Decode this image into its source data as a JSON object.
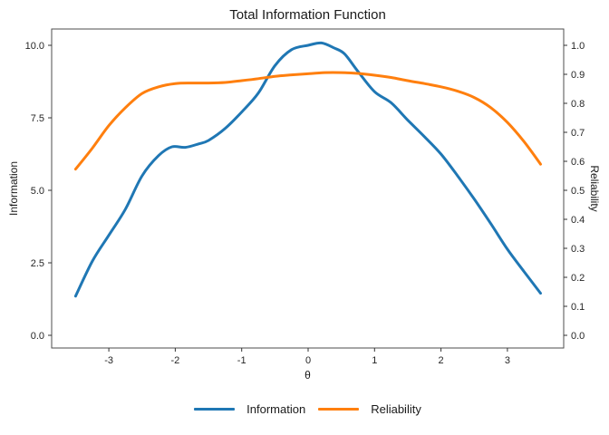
{
  "chart_data": {
    "type": "line",
    "title": "Total Information Function",
    "xlabel": "θ",
    "ylabel_left": "Information",
    "ylabel_right": "Reliability",
    "xlim": [
      -3.5,
      3.5
    ],
    "ylim_left": [
      0,
      10
    ],
    "ylim_right": [
      0,
      1.0
    ],
    "grid": false,
    "legend_position": "bottom-center",
    "x_ticks": [
      {
        "v": -3,
        "label": "-3"
      },
      {
        "v": -2,
        "label": "-2"
      },
      {
        "v": -1,
        "label": "-1"
      },
      {
        "v": 0,
        "label": "0"
      },
      {
        "v": 1,
        "label": "1"
      },
      {
        "v": 2,
        "label": "2"
      },
      {
        "v": 3,
        "label": "3"
      }
    ],
    "y_ticks_left": [
      {
        "v": 0,
        "label": "0.0"
      },
      {
        "v": 2.5,
        "label": "2.5"
      },
      {
        "v": 5,
        "label": "5.0"
      },
      {
        "v": 7.5,
        "label": "7.5"
      },
      {
        "v": 10,
        "label": "10.0"
      }
    ],
    "y_ticks_right": [
      {
        "v": 0.0,
        "label": "0.0"
      },
      {
        "v": 0.1,
        "label": "0.1"
      },
      {
        "v": 0.2,
        "label": "0.2"
      },
      {
        "v": 0.3,
        "label": "0.3"
      },
      {
        "v": 0.4,
        "label": "0.4"
      },
      {
        "v": 0.5,
        "label": "0.5"
      },
      {
        "v": 0.6,
        "label": "0.6"
      },
      {
        "v": 0.7,
        "label": "0.7"
      },
      {
        "v": 0.8,
        "label": "0.8"
      },
      {
        "v": 0.9,
        "label": "0.9"
      },
      {
        "v": 1.0,
        "label": "1.0"
      }
    ],
    "series": [
      {
        "name": "Information",
        "axis": "left",
        "color": "#1f77b4",
        "points": [
          [
            -3.5,
            1.35
          ],
          [
            -3.25,
            2.55
          ],
          [
            -3.0,
            3.45
          ],
          [
            -2.75,
            4.35
          ],
          [
            -2.5,
            5.5
          ],
          [
            -2.25,
            6.2
          ],
          [
            -2.05,
            6.5
          ],
          [
            -1.85,
            6.48
          ],
          [
            -1.65,
            6.6
          ],
          [
            -1.5,
            6.72
          ],
          [
            -1.25,
            7.13
          ],
          [
            -1.0,
            7.7
          ],
          [
            -0.75,
            8.35
          ],
          [
            -0.5,
            9.3
          ],
          [
            -0.25,
            9.85
          ],
          [
            0.0,
            10.0
          ],
          [
            0.2,
            10.08
          ],
          [
            0.4,
            9.9
          ],
          [
            0.55,
            9.7
          ],
          [
            0.75,
            9.1
          ],
          [
            1.0,
            8.4
          ],
          [
            1.25,
            8.02
          ],
          [
            1.5,
            7.42
          ],
          [
            1.75,
            6.85
          ],
          [
            2.0,
            6.25
          ],
          [
            2.25,
            5.5
          ],
          [
            2.5,
            4.7
          ],
          [
            2.75,
            3.85
          ],
          [
            3.0,
            2.97
          ],
          [
            3.25,
            2.2
          ],
          [
            3.5,
            1.45
          ]
        ]
      },
      {
        "name": "Reliability",
        "axis": "right",
        "color": "#ff7f0e",
        "points": [
          [
            -3.5,
            0.573
          ],
          [
            -3.25,
            0.645
          ],
          [
            -3.0,
            0.723
          ],
          [
            -2.75,
            0.785
          ],
          [
            -2.5,
            0.834
          ],
          [
            -2.25,
            0.857
          ],
          [
            -2.0,
            0.868
          ],
          [
            -1.75,
            0.87
          ],
          [
            -1.5,
            0.87
          ],
          [
            -1.25,
            0.872
          ],
          [
            -1.0,
            0.878
          ],
          [
            -0.75,
            0.885
          ],
          [
            -0.5,
            0.893
          ],
          [
            -0.25,
            0.898
          ],
          [
            0.0,
            0.902
          ],
          [
            0.25,
            0.906
          ],
          [
            0.5,
            0.906
          ],
          [
            0.75,
            0.903
          ],
          [
            1.0,
            0.897
          ],
          [
            1.25,
            0.889
          ],
          [
            1.5,
            0.878
          ],
          [
            1.75,
            0.868
          ],
          [
            2.0,
            0.857
          ],
          [
            2.25,
            0.842
          ],
          [
            2.5,
            0.82
          ],
          [
            2.75,
            0.785
          ],
          [
            3.0,
            0.734
          ],
          [
            3.25,
            0.668
          ],
          [
            3.5,
            0.59
          ]
        ]
      }
    ],
    "legend": [
      {
        "label": "Information",
        "color": "#1f77b4"
      },
      {
        "label": "Reliability",
        "color": "#ff7f0e"
      }
    ]
  }
}
